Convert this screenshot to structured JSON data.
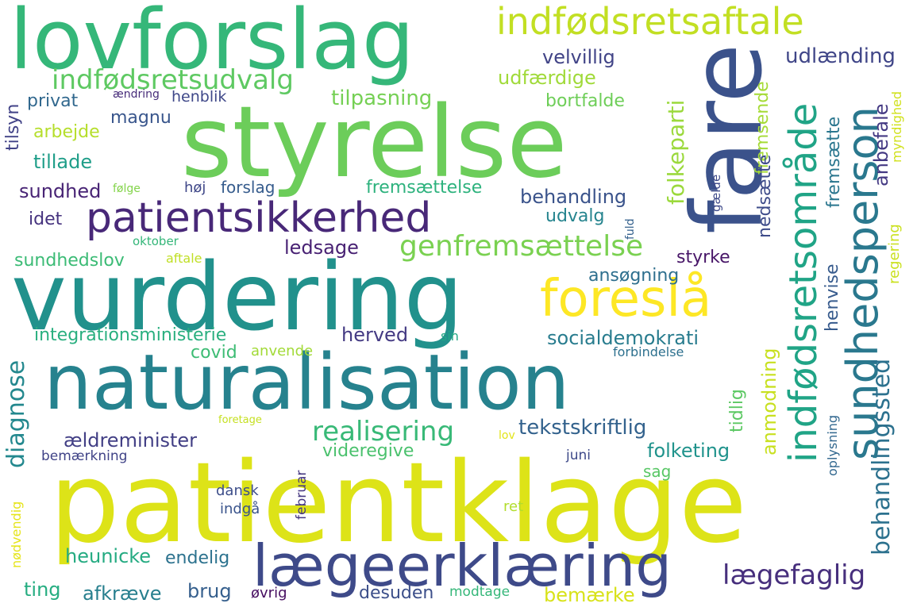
{
  "words": [
    {
      "text": "lovforslag",
      "color": "#35b779"
    },
    {
      "text": "styrelse",
      "color": "#6ccd5a"
    },
    {
      "text": "fare",
      "color": "#3b528b"
    },
    {
      "text": "indfødsretsaftale",
      "color": "#c2df23"
    },
    {
      "text": "vurdering",
      "color": "#21918c"
    },
    {
      "text": "naturalisation",
      "color": "#26828e"
    },
    {
      "text": "patientklage",
      "color": "#dde318"
    },
    {
      "text": "lægeerklæring",
      "color": "#3e4a89"
    },
    {
      "text": "patientsikkerhed",
      "color": "#482878"
    },
    {
      "text": "foreslå",
      "color": "#fde725"
    },
    {
      "text": "genfremsættelse",
      "color": "#7ad151"
    },
    {
      "text": "indfødsretsudvalg",
      "color": "#5ec962"
    },
    {
      "text": "velvillig",
      "color": "#414487"
    },
    {
      "text": "udlænding",
      "color": "#404688"
    },
    {
      "text": "udfærdige",
      "color": "#a0da39"
    },
    {
      "text": "tilpasning",
      "color": "#75d054"
    },
    {
      "text": "bortfalde",
      "color": "#6ece58"
    },
    {
      "text": "privat",
      "color": "#31688e"
    },
    {
      "text": "ændring",
      "color": "#472c7a"
    },
    {
      "text": "henblik",
      "color": "#3f4889"
    },
    {
      "text": "magnu",
      "color": "#39568c"
    },
    {
      "text": "arbejde",
      "color": "#b5de2b"
    },
    {
      "text": "tillade",
      "color": "#1f9e89"
    },
    {
      "text": "sundhed",
      "color": "#482475"
    },
    {
      "text": "følge",
      "color": "#84d44b"
    },
    {
      "text": "høj",
      "color": "#3f4788"
    },
    {
      "text": "forslag",
      "color": "#365c8d"
    },
    {
      "text": "fremsættelse",
      "color": "#2db27d"
    },
    {
      "text": "behandling",
      "color": "#3a538b"
    },
    {
      "text": "udvalg",
      "color": "#25848e"
    },
    {
      "text": "idet",
      "color": "#46337f"
    },
    {
      "text": "oktober",
      "color": "#34b679"
    },
    {
      "text": "aftale",
      "color": "#c0df25"
    },
    {
      "text": "sundhedslov",
      "color": "#3bbb75"
    },
    {
      "text": "ledsage",
      "color": "#482173"
    },
    {
      "text": "styrke",
      "color": "#481668"
    },
    {
      "text": "ansøgning",
      "color": "#2e6f8e"
    },
    {
      "text": "integrationsministerie",
      "color": "#29af7f"
    },
    {
      "text": "herved",
      "color": "#443a83"
    },
    {
      "text": "socialdemokrati",
      "color": "#287c8e"
    },
    {
      "text": "covid",
      "color": "#3dbc74"
    },
    {
      "text": "anvende",
      "color": "#a2da37"
    },
    {
      "text": "sin",
      "color": "#22a884"
    },
    {
      "text": "forbindelse",
      "color": "#2d708e"
    },
    {
      "text": "realisering",
      "color": "#38b977"
    },
    {
      "text": "tekstskriftlig",
      "color": "#33628d"
    },
    {
      "text": "ældreminister",
      "color": "#423f85"
    },
    {
      "text": "videregive",
      "color": "#4ac16d"
    },
    {
      "text": "folketing",
      "color": "#20938c"
    },
    {
      "text": "bemærkning",
      "color": "#404387"
    },
    {
      "text": "foretage",
      "color": "#c5e021"
    },
    {
      "text": "lov",
      "color": "#e2e418"
    },
    {
      "text": "juni",
      "color": "#3e4989"
    },
    {
      "text": "sag",
      "color": "#58c765"
    },
    {
      "text": "dansk",
      "color": "#3d4e8a"
    },
    {
      "text": "indgå",
      "color": "#3a548c"
    },
    {
      "text": "ret",
      "color": "#b2dd2d"
    },
    {
      "text": "heunicke",
      "color": "#25ab82"
    },
    {
      "text": "endelig",
      "color": "#2c728e"
    },
    {
      "text": "lægefaglig",
      "color": "#472f7d"
    },
    {
      "text": "ting",
      "color": "#26ad81"
    },
    {
      "text": "afkræve",
      "color": "#277f8e"
    },
    {
      "text": "brug",
      "color": "#355f8d"
    },
    {
      "text": "øvrig",
      "color": "#470e61"
    },
    {
      "text": "desuden",
      "color": "#3c4f8a"
    },
    {
      "text": "modtage",
      "color": "#35b779"
    },
    {
      "text": "bemærke",
      "color": "#d8e219"
    },
    {
      "text": "indfødsretsområde",
      "color": "#20a486"
    },
    {
      "text": "sundhedsperson",
      "color": "#2a788e"
    },
    {
      "text": "behandlingssted",
      "color": "#2c718e"
    },
    {
      "text": "folkeparti",
      "color": "#9bd93c"
    },
    {
      "text": "fremsende",
      "color": "#a5db36"
    },
    {
      "text": "nedsætte",
      "color": "#3e4c8a"
    },
    {
      "text": "anbefale",
      "color": "#443983"
    },
    {
      "text": "fremsætte",
      "color": "#2a768e"
    },
    {
      "text": "myndighed",
      "color": "#d0e11c"
    },
    {
      "text": "regering",
      "color": "#cae11f"
    },
    {
      "text": "henvise",
      "color": "#375b8d"
    },
    {
      "text": "anmodning",
      "color": "#c8e020"
    },
    {
      "text": "tidlig",
      "color": "#5cc863"
    },
    {
      "text": "oplysning",
      "color": "#31678e"
    },
    {
      "text": "diagnose",
      "color": "#23888e"
    },
    {
      "text": "tilsyn",
      "color": "#414287"
    },
    {
      "text": "nødvendig",
      "color": "#e5e419"
    },
    {
      "text": "februar",
      "color": "#453781"
    },
    {
      "text": "gælde",
      "color": "#3e4a89"
    },
    {
      "text": "fuld",
      "color": "#34618d"
    }
  ]
}
